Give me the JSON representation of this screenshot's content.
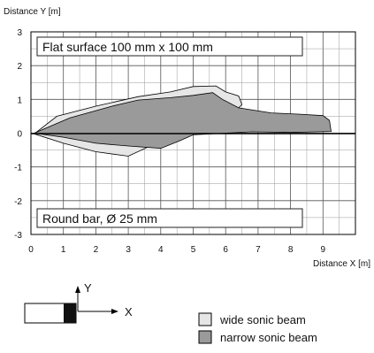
{
  "chart_data": {
    "type": "area",
    "ylabel": "Distance Y [m]",
    "xlabel": "Distance X [m]",
    "xlim": [
      0,
      10
    ],
    "ylim": [
      -3,
      3
    ],
    "x_ticks": [
      "0",
      "1",
      "2",
      "3",
      "4",
      "5",
      "6",
      "7",
      "8",
      "9"
    ],
    "y_ticks": [
      "3",
      "2",
      "1",
      "0",
      "-1",
      "-2",
      "-3"
    ],
    "grid": true,
    "annotations": {
      "top": "Flat surface 100 mm x 100 mm",
      "bottom": "Round bar, Ø 25 mm"
    },
    "series": [
      {
        "name": "wide sonic beam",
        "color": "#e6e6e6",
        "points": [
          [
            0.1,
            -0.02
          ],
          [
            0.8,
            0.5
          ],
          [
            2.0,
            0.8
          ],
          [
            3.3,
            1.08
          ],
          [
            4.3,
            1.22
          ],
          [
            5.0,
            1.38
          ],
          [
            5.7,
            1.4
          ],
          [
            6.0,
            1.22
          ],
          [
            6.4,
            1.1
          ],
          [
            6.5,
            0.85
          ],
          [
            6.0,
            0.35
          ],
          [
            5.4,
            0.12
          ],
          [
            5.0,
            0.05
          ],
          [
            4.5,
            -0.02
          ],
          [
            3.9,
            -0.28
          ],
          [
            3.0,
            -0.68
          ],
          [
            2.0,
            -0.55
          ],
          [
            1.0,
            -0.3
          ],
          [
            0.1,
            -0.02
          ]
        ]
      },
      {
        "name": "narrow sonic beam",
        "color": "#9a9a9a",
        "points": [
          [
            0.1,
            0.0
          ],
          [
            1.2,
            0.45
          ],
          [
            2.5,
            0.8
          ],
          [
            3.3,
            0.98
          ],
          [
            4.3,
            1.05
          ],
          [
            5.0,
            1.12
          ],
          [
            5.6,
            1.2
          ],
          [
            5.9,
            1.0
          ],
          [
            6.4,
            0.75
          ],
          [
            7.4,
            0.6
          ],
          [
            8.3,
            0.56
          ],
          [
            9.0,
            0.52
          ],
          [
            9.2,
            0.38
          ],
          [
            9.25,
            0.05
          ],
          [
            8.0,
            0.02
          ],
          [
            6.8,
            0.04
          ],
          [
            6.0,
            0.0
          ],
          [
            5.0,
            -0.05
          ],
          [
            4.6,
            -0.22
          ],
          [
            4.0,
            -0.45
          ],
          [
            3.0,
            -0.38
          ],
          [
            2.0,
            -0.3
          ],
          [
            1.0,
            -0.12
          ],
          [
            0.1,
            0.0
          ]
        ]
      }
    ]
  },
  "schematic": {
    "y_label": "Y",
    "x_label": "X"
  },
  "legend": [
    {
      "label": "wide sonic beam",
      "color": "#e6e6e6"
    },
    {
      "label": "narrow sonic beam",
      "color": "#9a9a9a"
    }
  ]
}
